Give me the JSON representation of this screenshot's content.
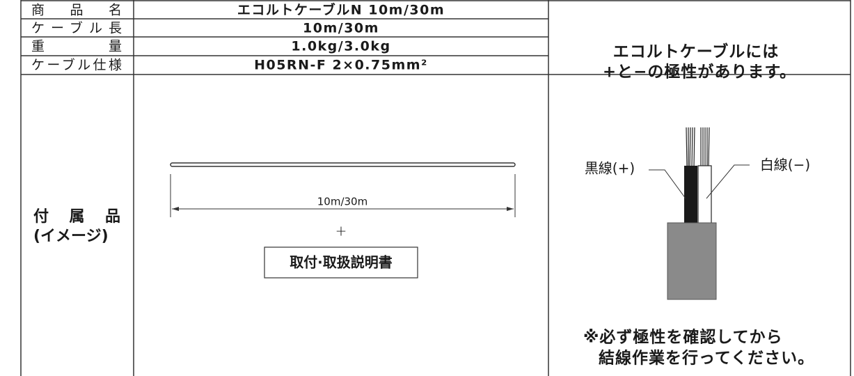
{
  "spec_rows": [
    {
      "label": "商品名",
      "value": "エコルトケーブルN 10m/30m"
    },
    {
      "label": "ケーブル長",
      "value": "10m/30m"
    },
    {
      "label": "重量",
      "value": "1.0kg/3.0kg"
    },
    {
      "label": "ケーブル仕様",
      "value": "H05RN-F 2×0.75mm²"
    }
  ],
  "polarity_note": [
    "エコルトケーブルには",
    "+と−の極性があります。"
  ],
  "accessories": {
    "label": [
      "付属品",
      "(イメージ)"
    ],
    "length_label": "10m/30m",
    "plus": "+",
    "manual": "取付·取扱説明書"
  },
  "wire_labels": {
    "black": "黒線(+)",
    "white": "白線(−)"
  },
  "caution": [
    "※必ず極性を確認してから",
    "結線作業を行ってください。"
  ]
}
